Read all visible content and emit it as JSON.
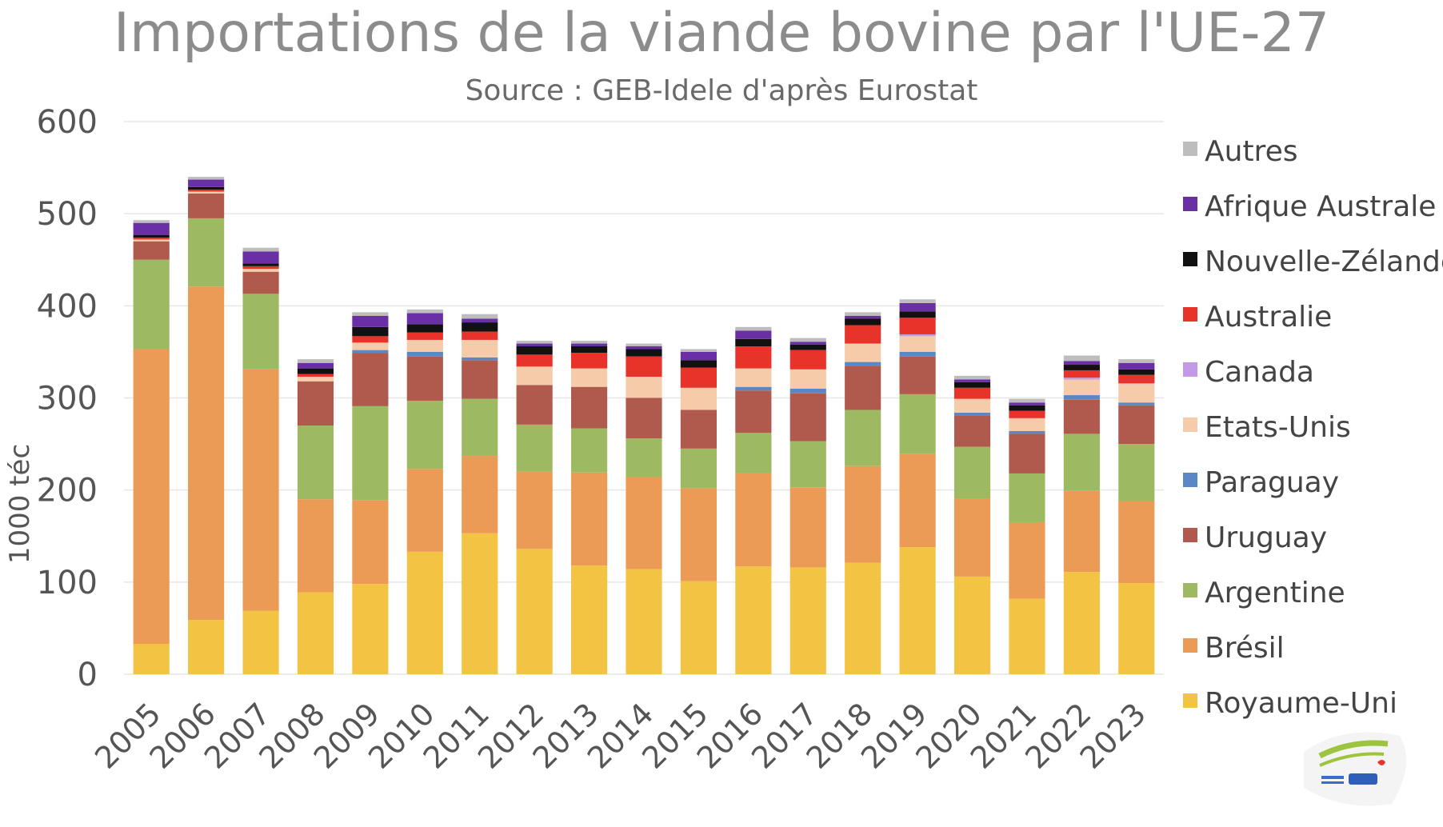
{
  "chart_data": {
    "type": "bar",
    "stacked": true,
    "title": "Importations de la viande bovine par l'UE-27",
    "subtitle": "Source :  GEB-Idele d'après Eurostat",
    "ylabel": "1000 téc",
    "xlabel": "",
    "ylim": [
      0,
      600
    ],
    "yticks": [
      0,
      100,
      200,
      300,
      400,
      500,
      600
    ],
    "grid": true,
    "legend_position": "right",
    "categories": [
      "2005",
      "2006",
      "2007",
      "2008",
      "2009",
      "2010",
      "2011",
      "2012",
      "2013",
      "2014",
      "2015",
      "2016",
      "2017",
      "2018",
      "2019",
      "2020",
      "2021",
      "2022",
      "2023"
    ],
    "series": [
      {
        "name": "Royaume-Uni",
        "color": "#f3c443",
        "values": [
          33,
          59,
          69,
          89,
          98,
          133,
          153,
          136,
          118,
          114,
          101,
          117,
          116,
          121,
          138,
          106,
          82,
          111,
          99
        ]
      },
      {
        "name": "Brésil",
        "color": "#ec9b56",
        "values": [
          320,
          362,
          262,
          101,
          91,
          90,
          84,
          84,
          101,
          100,
          101,
          101,
          87,
          105,
          101,
          85,
          83,
          88,
          89
        ]
      },
      {
        "name": "Argentine",
        "color": "#9dba63",
        "values": [
          97,
          74,
          82,
          80,
          102,
          74,
          62,
          51,
          48,
          42,
          43,
          44,
          50,
          61,
          65,
          56,
          53,
          62,
          62
        ]
      },
      {
        "name": "Uruguay",
        "color": "#b05a4d",
        "values": [
          20,
          27,
          24,
          48,
          58,
          48,
          42,
          43,
          45,
          44,
          42,
          46,
          52,
          48,
          41,
          34,
          43,
          37,
          42
        ]
      },
      {
        "name": "Paraguay",
        "color": "#5a88c7",
        "values": [
          0,
          0,
          0,
          0,
          3,
          5,
          3,
          0,
          0,
          0,
          0,
          4,
          5,
          4,
          5,
          3,
          3,
          5,
          3
        ]
      },
      {
        "name": "Etats-Unis",
        "color": "#f5cba9",
        "values": [
          2,
          2,
          3,
          5,
          8,
          13,
          19,
          20,
          20,
          23,
          24,
          20,
          21,
          20,
          17,
          15,
          14,
          17,
          20
        ]
      },
      {
        "name": "Canada",
        "color": "#c49ae8",
        "values": [
          0,
          0,
          0,
          0,
          0,
          0,
          0,
          0,
          0,
          0,
          0,
          0,
          0,
          0,
          2,
          0,
          0,
          2,
          1
        ]
      },
      {
        "name": "Australie",
        "color": "#e8332b",
        "values": [
          2,
          2,
          3,
          3,
          7,
          8,
          9,
          13,
          17,
          22,
          22,
          24,
          21,
          20,
          18,
          12,
          8,
          8,
          9
        ]
      },
      {
        "name": "Nouvelle-Zélande",
        "color": "#111111",
        "values": [
          3,
          3,
          3,
          6,
          10,
          9,
          10,
          9,
          7,
          8,
          8,
          8,
          6,
          7,
          7,
          6,
          6,
          6,
          6
        ]
      },
      {
        "name": "Afrique Australe",
        "color": "#6b2fa5",
        "values": [
          13,
          8,
          13,
          6,
          12,
          12,
          4,
          3,
          3,
          3,
          9,
          9,
          3,
          3,
          9,
          3,
          3,
          4,
          7
        ]
      },
      {
        "name": "Autres",
        "color": "#bdbdbd",
        "values": [
          3,
          3,
          4,
          4,
          4,
          4,
          5,
          3,
          3,
          3,
          3,
          4,
          4,
          4,
          4,
          4,
          4,
          6,
          4
        ]
      }
    ]
  }
}
